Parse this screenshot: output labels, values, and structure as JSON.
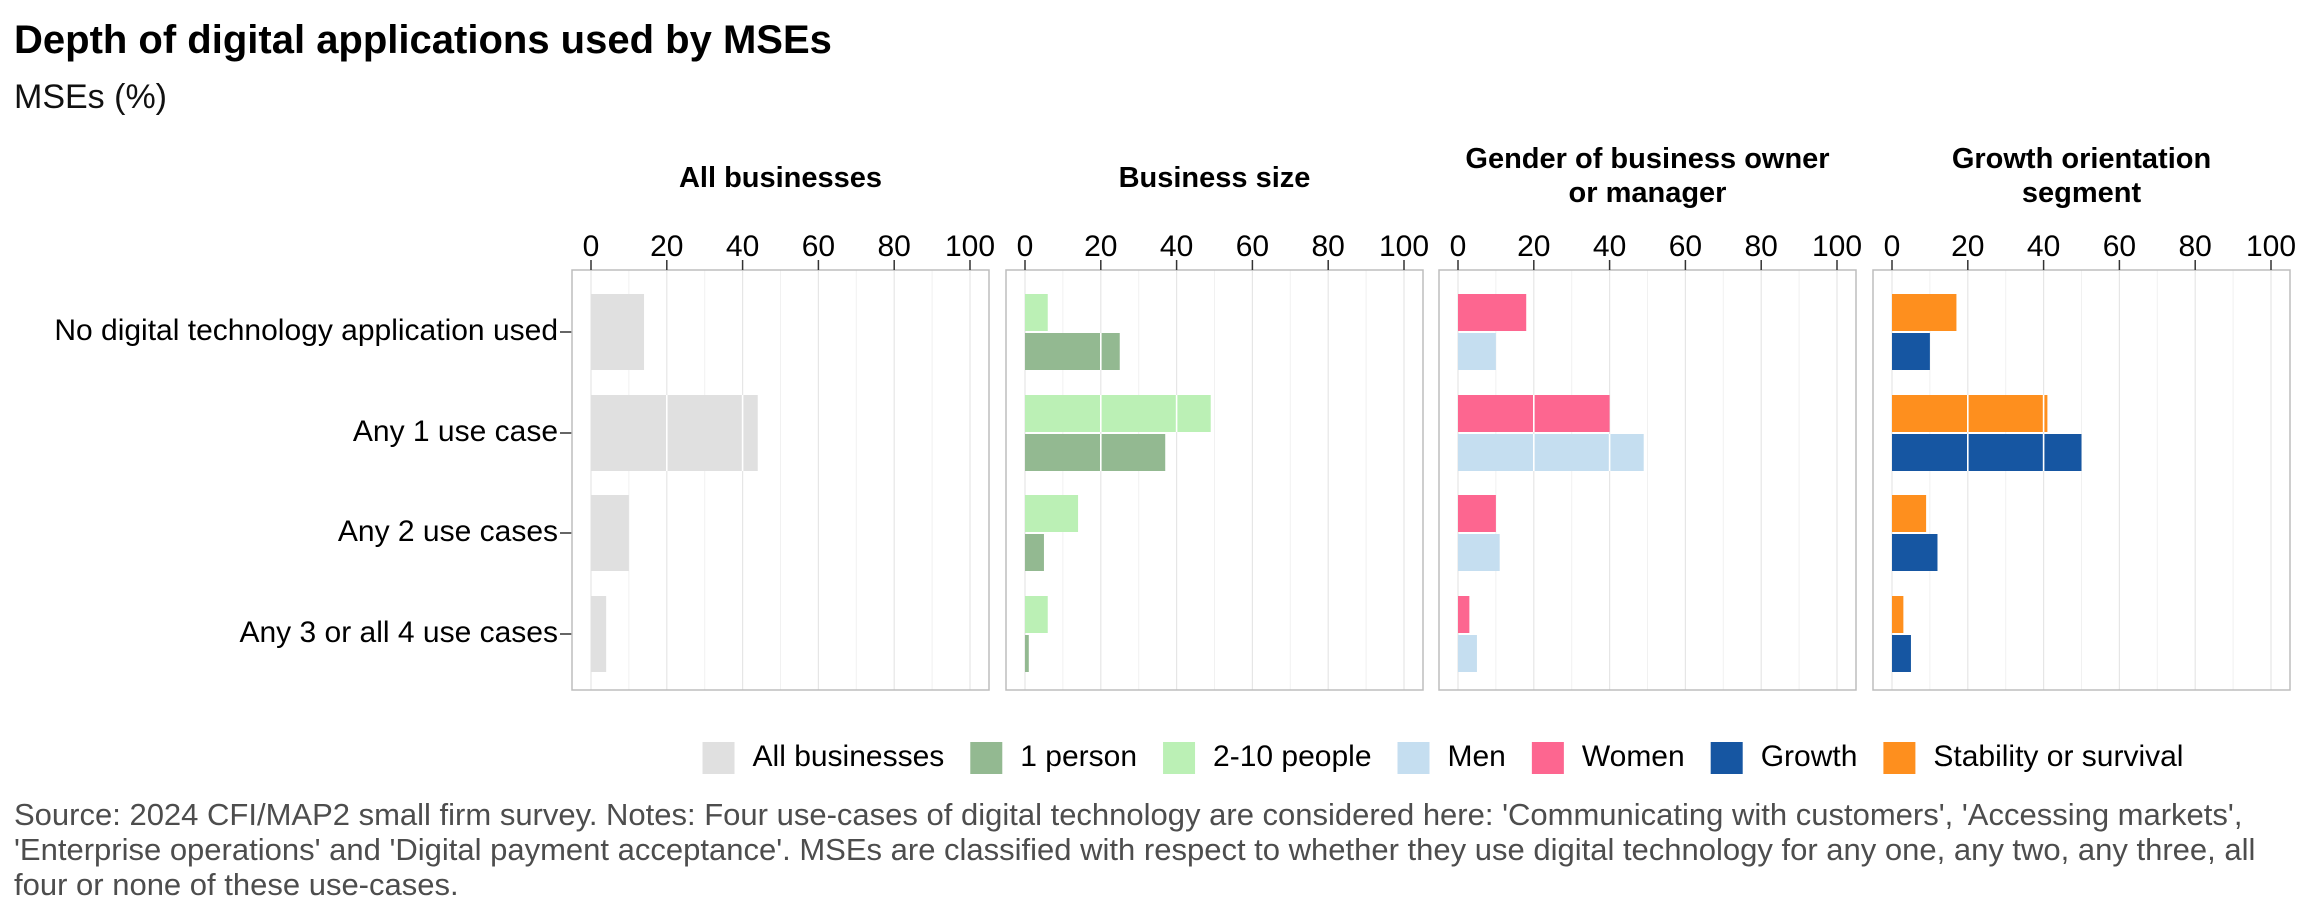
{
  "title": "Depth of digital applications used by MSEs",
  "subtitle": "MSEs (%)",
  "source": "Source: 2024 CFI/MAP2 small firm survey. Notes: Four use-cases of digital technology are considered here: 'Communicating with customers', 'Accessing markets', 'Enterprise operations' and 'Digital payment acceptance'. MSEs are classified with respect to whether they use digital technology for any one, any two, any three, all four or none of these use-cases.",
  "chart_data": {
    "type": "bar",
    "orientation": "horizontal",
    "categories": [
      "No digital technology application used",
      "Any 1 use case",
      "Any 2 use cases",
      "Any 3 or all 4 use cases"
    ],
    "xlim": [
      0,
      100
    ],
    "x_ticks": [
      "0",
      "20",
      "40",
      "60",
      "80",
      "100"
    ],
    "grid": true,
    "legend_position": "bottom",
    "panels": [
      {
        "title": [
          "All businesses"
        ],
        "series": [
          {
            "name": "All businesses",
            "color": "#e0e0e0",
            "values": [
              14,
              44,
              10,
              4
            ]
          }
        ]
      },
      {
        "title": [
          "Business size"
        ],
        "series": [
          {
            "name": "2-10 people",
            "color": "#bbf0b5",
            "values": [
              6,
              49,
              14,
              6
            ]
          },
          {
            "name": "1 person",
            "color": "#93b991",
            "values": [
              25,
              37,
              5,
              1
            ]
          }
        ]
      },
      {
        "title": [
          "Gender of business owner",
          "or manager"
        ],
        "series": [
          {
            "name": "Women",
            "color": "#fd6690",
            "values": [
              18,
              40,
              10,
              3
            ]
          },
          {
            "name": "Men",
            "color": "#c5def0",
            "values": [
              10,
              49,
              11,
              5
            ]
          }
        ]
      },
      {
        "title": [
          "Growth orientation",
          "segment"
        ],
        "series": [
          {
            "name": "Stability or survival",
            "color": "#fe8f1e",
            "values": [
              17,
              41,
              9,
              3
            ]
          },
          {
            "name": "Growth",
            "color": "#1656a2",
            "values": [
              10,
              50,
              12,
              5
            ]
          }
        ]
      }
    ],
    "legend": [
      {
        "name": "All businesses",
        "color": "#e0e0e0"
      },
      {
        "name": "1 person",
        "color": "#93b991"
      },
      {
        "name": "2-10 people",
        "color": "#bbf0b5"
      },
      {
        "name": "Men",
        "color": "#c5def0"
      },
      {
        "name": "Women",
        "color": "#fd6690"
      },
      {
        "name": "Growth",
        "color": "#1656a2"
      },
      {
        "name": "Stability or survival",
        "color": "#fe8f1e"
      }
    ]
  }
}
